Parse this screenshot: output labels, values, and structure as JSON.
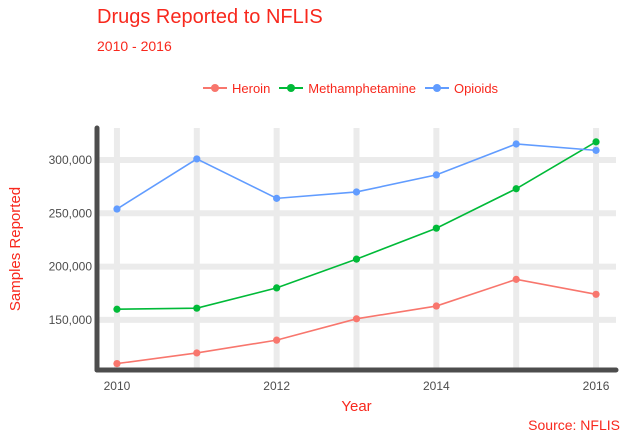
{
  "chart_data": {
    "type": "line",
    "title": "Drugs Reported to NFLIS",
    "subtitle": "2010 - 2016",
    "xlabel": "Year",
    "ylabel": "Samples Reported",
    "caption": "Source: NFLIS",
    "x": [
      2010,
      2011,
      2012,
      2013,
      2014,
      2015,
      2016
    ],
    "xlim": [
      2009.75,
      2016.25
    ],
    "ylim": [
      103000,
      330000
    ],
    "xticks": [
      2010,
      2012,
      2014,
      2016
    ],
    "xtick_labels": [
      "2010",
      "2012",
      "2014",
      "2016"
    ],
    "yticks": [
      150000,
      200000,
      250000,
      300000
    ],
    "ytick_labels": [
      "150,000",
      "200,000",
      "250,000",
      "300,000"
    ],
    "grid": true,
    "legend_position": "top",
    "series": [
      {
        "name": "Heroin",
        "color": "#f8766d",
        "values": [
          109000,
          119000,
          131000,
          151000,
          163000,
          188000,
          174000
        ]
      },
      {
        "name": "Methamphetamine",
        "color": "#00ba38",
        "values": [
          160000,
          161000,
          180000,
          207000,
          236000,
          273000,
          317000
        ]
      },
      {
        "name": "Opioids",
        "color": "#619cff",
        "values": [
          254000,
          301000,
          264000,
          270000,
          286000,
          315000,
          309000
        ]
      }
    ]
  }
}
